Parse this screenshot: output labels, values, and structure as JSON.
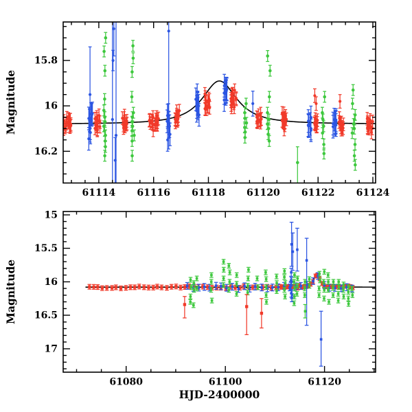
{
  "colors": {
    "red": "#f13a2a",
    "green": "#3ec83e",
    "blue": "#2b55e2",
    "model": "#000000",
    "frame": "#000000",
    "background": "#ffffff"
  },
  "chart_data": [
    {
      "id": "top-panel",
      "type": "scatter",
      "xlabel": "",
      "ylabel": "Magnitude",
      "x_range": [
        61112.7,
        61124.1
      ],
      "y_range": [
        15.63,
        16.34
      ],
      "y_inverted": true,
      "x_ticks": {
        "major": [
          61114,
          61116,
          61118,
          61120,
          61122,
          61124
        ],
        "labels": [
          "61114",
          "61116",
          "61118",
          "61120",
          "61122",
          "61124"
        ],
        "minor_step": 0.5
      },
      "y_ticks": {
        "major": [
          15.8,
          16.0,
          16.2
        ],
        "labels": [
          "15.8",
          "16",
          "16.2"
        ],
        "minor_step": 0.05
      },
      "model_curve": {
        "baseline_mag": 16.08,
        "peak_mag": 15.89,
        "peak_time": 61118.4,
        "amp": 0.19,
        "width": 0.85,
        "shape_exp": 1.2
      },
      "clusters": [
        {
          "series": "red",
          "t": 61112.85,
          "t_jitter": 0.15,
          "mag_lo": 16.04,
          "mag_hi": 16.12,
          "n": 18,
          "err": 0.028
        },
        {
          "series": "red",
          "t": 61113.95,
          "t_jitter": 0.1,
          "mag_lo": 16.03,
          "mag_hi": 16.12,
          "n": 14,
          "err": 0.028
        },
        {
          "series": "red",
          "t": 61114.95,
          "t_jitter": 0.09,
          "mag_lo": 16.04,
          "mag_hi": 16.12,
          "n": 12,
          "err": 0.028
        },
        {
          "series": "red",
          "t": 61116.0,
          "t_jitter": 0.18,
          "mag_lo": 16.03,
          "mag_hi": 16.12,
          "n": 20,
          "err": 0.028
        },
        {
          "series": "red",
          "t": 61116.85,
          "t_jitter": 0.09,
          "mag_lo": 16.01,
          "mag_hi": 16.09,
          "n": 12,
          "err": 0.028
        },
        {
          "series": "red",
          "t": 61117.95,
          "t_jitter": 0.1,
          "mag_lo": 15.94,
          "mag_hi": 16.03,
          "n": 14,
          "err": 0.028
        },
        {
          "series": "red",
          "t": 61118.92,
          "t_jitter": 0.1,
          "mag_lo": 15.92,
          "mag_hi": 16.02,
          "n": 15,
          "err": 0.028
        },
        {
          "series": "red",
          "t": 61119.85,
          "t_jitter": 0.09,
          "mag_lo": 16.02,
          "mag_hi": 16.1,
          "n": 12,
          "err": 0.028
        },
        {
          "series": "red",
          "t": 61120.8,
          "t_jitter": 0.11,
          "mag_lo": 16.03,
          "mag_hi": 16.11,
          "n": 15,
          "err": 0.028
        },
        {
          "series": "red",
          "t": 61121.9,
          "t_jitter": 0.09,
          "mag_lo": 16.04,
          "mag_hi": 16.12,
          "n": 12,
          "err": 0.028
        },
        {
          "series": "red",
          "t": 61122.85,
          "t_jitter": 0.09,
          "mag_lo": 16.04,
          "mag_hi": 16.12,
          "n": 12,
          "err": 0.028
        },
        {
          "series": "red",
          "t": 61123.9,
          "t_jitter": 0.12,
          "mag_lo": 16.04,
          "mag_hi": 16.13,
          "n": 16,
          "err": 0.028
        },
        {
          "series": "blue",
          "t": 61113.7,
          "t_jitter": 0.07,
          "mag_lo": 15.98,
          "mag_hi": 16.16,
          "n": 10,
          "err": 0.05
        },
        {
          "series": "blue",
          "t": 61116.55,
          "t_jitter": 0.06,
          "mag_lo": 16.0,
          "mag_hi": 16.16,
          "n": 10,
          "err": 0.05
        },
        {
          "series": "blue",
          "t": 61117.6,
          "t_jitter": 0.07,
          "mag_lo": 15.94,
          "mag_hi": 16.08,
          "n": 10,
          "err": 0.05
        },
        {
          "series": "blue",
          "t": 61118.62,
          "t_jitter": 0.07,
          "mag_lo": 15.89,
          "mag_hi": 15.98,
          "n": 10,
          "err": 0.05
        },
        {
          "series": "blue",
          "t": 61121.7,
          "t_jitter": 0.07,
          "mag_lo": 16.03,
          "mag_hi": 16.12,
          "n": 9,
          "err": 0.05
        },
        {
          "series": "blue",
          "t": 61122.6,
          "t_jitter": 0.07,
          "mag_lo": 16.04,
          "mag_hi": 16.12,
          "n": 10,
          "err": 0.05
        }
      ],
      "columns": [
        {
          "series": "green",
          "t": 61114.2,
          "t_jitter": 0.05,
          "err": 0.024,
          "mags": [
            15.7,
            15.76,
            15.845,
            15.97,
            16.02,
            16.05,
            16.07,
            16.09,
            16.11,
            16.13,
            16.155,
            16.18,
            16.22
          ]
        },
        {
          "series": "green",
          "t": 61115.25,
          "t_jitter": 0.05,
          "err": 0.024,
          "mags": [
            15.735,
            15.79,
            15.85,
            15.96,
            16.03,
            16.05,
            16.07,
            16.09,
            16.11,
            16.13,
            16.155,
            16.22
          ]
        },
        {
          "series": "green",
          "t": 61119.35,
          "t_jitter": 0.05,
          "err": 0.024,
          "mags": [
            15.99,
            16.03,
            16.055,
            16.075,
            16.095,
            16.115,
            16.14
          ]
        },
        {
          "series": "green",
          "t": 61120.2,
          "t_jitter": 0.05,
          "err": 0.024,
          "mags": [
            15.78,
            15.845,
            15.96,
            16.03,
            16.06,
            16.08,
            16.1,
            16.125,
            16.155
          ]
        },
        {
          "series": "green",
          "t": 61122.2,
          "t_jitter": 0.05,
          "err": 0.024,
          "mags": [
            15.96,
            16.03,
            16.06,
            16.09,
            16.12,
            16.17,
            16.21
          ]
        },
        {
          "series": "green",
          "t": 61123.3,
          "t_jitter": 0.06,
          "err": 0.024,
          "mags": [
            15.93,
            15.99,
            16.04,
            16.06,
            16.08,
            16.1,
            16.12,
            16.17,
            16.22,
            16.26
          ]
        }
      ],
      "outliers": [
        {
          "series": "red",
          "t": 61121.88,
          "mag": 15.955,
          "err": 0.03
        },
        {
          "series": "red",
          "t": 61121.93,
          "mag": 15.99,
          "err": 0.03
        },
        {
          "series": "red",
          "t": 61122.8,
          "mag": 15.98,
          "err": 0.03
        },
        {
          "series": "blue",
          "t": 61113.68,
          "mag": 15.95,
          "err": 0.21
        },
        {
          "series": "blue",
          "t": 61114.5,
          "mag": 16.06,
          "err": 0.75
        },
        {
          "series": "blue",
          "t": 61114.63,
          "mag": 16.13,
          "err": 0.65
        },
        {
          "series": "blue",
          "t": 61114.55,
          "mag": 15.66,
          "err": 0.12
        },
        {
          "series": "blue",
          "t": 61114.6,
          "mag": 16.24,
          "err": 0.1
        },
        {
          "series": "blue",
          "t": 61114.52,
          "mag": 15.8,
          "err": 0.045
        },
        {
          "series": "blue",
          "t": 61116.55,
          "mag": 15.67,
          "err": 0.52
        },
        {
          "series": "blue",
          "t": 61119.62,
          "mag": 15.99,
          "err": 0.055
        },
        {
          "series": "green",
          "t": 61121.25,
          "mag": 16.25,
          "err_up": 0.07,
          "err_dn": 0.12
        }
      ]
    },
    {
      "id": "bottom-panel",
      "type": "scatter",
      "xlabel": "HJD-2400000",
      "ylabel": "Magnitude",
      "x_range": [
        61067.3,
        61130.3
      ],
      "y_range": [
        14.95,
        17.35
      ],
      "y_inverted": true,
      "x_ticks": {
        "major": [
          61080,
          61100,
          61120
        ],
        "labels": [
          "61080",
          "61100",
          "61120"
        ],
        "minor_step": 5
      },
      "y_ticks": {
        "major": [
          15.0,
          15.5,
          16.0,
          16.5,
          17.0
        ],
        "labels": [
          "15",
          "15.5",
          "16",
          "16.5",
          "17"
        ],
        "minor_step": 0.1
      },
      "model_curve": {
        "baseline_mag": 16.08,
        "peak_mag": 15.89,
        "peak_time": 61118.4,
        "amp": 0.19,
        "width": 0.85,
        "shape_exp": 1.2,
        "t_start": 61071.8,
        "t_end": 61130.3
      },
      "runs": [
        {
          "series": "red",
          "t0": 61072.5,
          "t1": 61111.2,
          "step": 0.92,
          "noise": 0.013,
          "err": 0.035
        },
        {
          "series": "red",
          "t0": 61111.4,
          "t1": 61126.2,
          "step": 0.45,
          "noise": 0.015,
          "err": 0.03
        },
        {
          "series": "blue",
          "t0": 61092.3,
          "t1": 61126.0,
          "step": 1.15,
          "noise": 0.02,
          "err": 0.05
        }
      ],
      "clusters": [
        {
          "series": "blue",
          "t": 61113.3,
          "t_jitter": 0.15,
          "mag_lo": 15.78,
          "mag_hi": 16.3,
          "n": 8,
          "err": 0.06
        }
      ],
      "columns": [
        {
          "series": "green",
          "t": 61093.0,
          "t_jitter": 0.1,
          "err": 0.035,
          "mags": [
            15.97,
            16.08,
            16.22,
            16.3
          ]
        },
        {
          "series": "green",
          "t": 61093.6,
          "t_jitter": 0.1,
          "err": 0.035,
          "mags": [
            16.02,
            16.12,
            16.35
          ]
        },
        {
          "series": "green",
          "t": 61094.3,
          "t_jitter": 0.1,
          "err": 0.035,
          "mags": [
            15.95,
            16.1
          ]
        },
        {
          "series": "green",
          "t": 61097.2,
          "t_jitter": 0.1,
          "err": 0.035,
          "mags": [
            15.9,
            16.0,
            16.12,
            16.28
          ]
        },
        {
          "series": "green",
          "t": 61099.7,
          "t_jitter": 0.1,
          "err": 0.035,
          "mags": [
            15.7,
            15.82,
            15.95,
            16.05
          ]
        },
        {
          "series": "green",
          "t": 61100.8,
          "t_jitter": 0.1,
          "err": 0.035,
          "mags": [
            15.76,
            15.86,
            16.0,
            16.12
          ]
        },
        {
          "series": "green",
          "t": 61102.3,
          "t_jitter": 0.1,
          "err": 0.035,
          "mags": [
            15.9,
            16.03,
            16.18
          ]
        },
        {
          "series": "green",
          "t": 61104.6,
          "t_jitter": 0.1,
          "err": 0.035,
          "mags": [
            15.82,
            15.95,
            16.06,
            16.16
          ]
        },
        {
          "series": "green",
          "t": 61106.5,
          "t_jitter": 0.1,
          "err": 0.035,
          "mags": [
            15.95,
            16.08
          ]
        },
        {
          "series": "green",
          "t": 61108.2,
          "t_jitter": 0.1,
          "err": 0.035,
          "mags": [
            15.86,
            15.96,
            16.08,
            16.2,
            16.3
          ]
        },
        {
          "series": "green",
          "t": 61110.3,
          "t_jitter": 0.1,
          "err": 0.035,
          "mags": [
            15.92,
            16.02,
            16.14
          ]
        },
        {
          "series": "green",
          "t": 61112.0,
          "t_jitter": 0.1,
          "err": 0.035,
          "mags": [
            15.84,
            15.93,
            16.02,
            16.12,
            16.22
          ]
        },
        {
          "series": "green",
          "t": 61113.9,
          "t_jitter": 0.1,
          "err": 0.035,
          "mags": [
            15.9,
            16.0,
            16.1,
            16.22,
            16.32
          ]
        },
        {
          "series": "green",
          "t": 61114.5,
          "t_jitter": 0.1,
          "err": 0.035,
          "mags": [
            15.95,
            16.06,
            16.18
          ]
        },
        {
          "series": "green",
          "t": 61116.0,
          "t_jitter": 0.1,
          "err": 0.035,
          "mags": [
            16.0,
            16.1,
            16.2
          ]
        },
        {
          "series": "green",
          "t": 61117.0,
          "t_jitter": 0.1,
          "err": 0.035,
          "mags": [
            15.96,
            16.06
          ]
        },
        {
          "series": "green",
          "t": 61119.0,
          "t_jitter": 0.1,
          "err": 0.035,
          "mags": [
            15.88,
            15.98,
            16.1,
            16.2
          ]
        },
        {
          "series": "green",
          "t": 61119.9,
          "t_jitter": 0.1,
          "err": 0.035,
          "mags": [
            15.85,
            16.0,
            16.12,
            16.25
          ]
        },
        {
          "series": "green",
          "t": 61120.8,
          "t_jitter": 0.1,
          "err": 0.035,
          "mags": [
            15.9,
            16.0,
            16.12,
            16.3
          ]
        },
        {
          "series": "green",
          "t": 61121.8,
          "t_jitter": 0.1,
          "err": 0.035,
          "mags": [
            16.0,
            16.09,
            16.2
          ]
        },
        {
          "series": "green",
          "t": 61122.8,
          "t_jitter": 0.1,
          "err": 0.035,
          "mags": [
            16.0,
            16.08,
            16.18,
            16.28
          ]
        },
        {
          "series": "green",
          "t": 61123.8,
          "t_jitter": 0.1,
          "err": 0.035,
          "mags": [
            16.04,
            16.12,
            16.22
          ]
        },
        {
          "series": "green",
          "t": 61124.8,
          "t_jitter": 0.1,
          "err": 0.035,
          "mags": [
            16.08,
            16.15,
            16.25,
            16.33
          ]
        },
        {
          "series": "green",
          "t": 61125.6,
          "t_jitter": 0.1,
          "err": 0.035,
          "mags": [
            16.1,
            16.2
          ]
        }
      ],
      "outliers": [
        {
          "series": "red",
          "t": 61091.8,
          "mag": 16.34,
          "err_up": 0.12,
          "err_dn": 0.2
        },
        {
          "series": "red",
          "t": 61104.3,
          "mag": 16.37,
          "err_up": 0.18,
          "err_dn": 0.42
        },
        {
          "series": "red",
          "t": 61107.3,
          "mag": 16.47,
          "err_up": 0.22,
          "err_dn": 0.22
        },
        {
          "series": "blue",
          "t": 61113.35,
          "mag": 15.44,
          "err": 0.33
        },
        {
          "series": "blue",
          "t": 61113.6,
          "mag": 15.55,
          "err": 0.28
        },
        {
          "series": "blue",
          "t": 61114.5,
          "mag": 15.52,
          "err": 0.32
        },
        {
          "series": "blue",
          "t": 61116.4,
          "mag": 15.68,
          "err_up": 0.33,
          "err_dn": 0.97
        },
        {
          "series": "blue",
          "t": 61119.3,
          "mag": 16.86,
          "err_up": 0.42,
          "err_dn": 0.4
        },
        {
          "series": "green",
          "t": 61116.1,
          "mag": 16.44,
          "err": 0.1
        }
      ]
    }
  ]
}
